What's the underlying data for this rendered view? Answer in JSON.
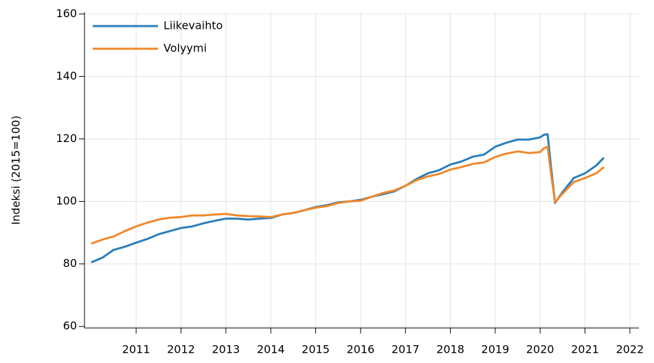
{
  "chart_data": {
    "type": "line",
    "y_label": "Indeksi (2015=100)",
    "x": [
      2010.0,
      2010.25,
      2010.5,
      2010.75,
      2011.0,
      2011.25,
      2011.5,
      2011.75,
      2012.0,
      2012.25,
      2012.5,
      2012.75,
      2013.0,
      2013.25,
      2013.5,
      2013.75,
      2014.0,
      2014.25,
      2014.5,
      2014.75,
      2015.0,
      2015.25,
      2015.5,
      2015.75,
      2016.0,
      2016.25,
      2016.5,
      2016.75,
      2017.0,
      2017.25,
      2017.5,
      2017.75,
      2018.0,
      2018.25,
      2018.5,
      2018.75,
      2019.0,
      2019.25,
      2019.5,
      2019.75,
      2020.0,
      2020.083,
      2020.167,
      2020.25,
      2020.333,
      2020.5,
      2020.75,
      2021.0,
      2021.25,
      2021.42
    ],
    "series": [
      {
        "name": "Liikevaihto",
        "color": "#2a7fba",
        "values": [
          80.5,
          82,
          84.5,
          85.5,
          86.8,
          88,
          89.5,
          90.5,
          91.5,
          92,
          93,
          93.8,
          94.5,
          94.5,
          94.2,
          94.5,
          94.7,
          95.8,
          96.3,
          97.2,
          98.2,
          98.8,
          99.7,
          100,
          100.5,
          101.5,
          102.3,
          103.2,
          105,
          107.2,
          109,
          110,
          111.8,
          112.8,
          114.3,
          115,
          117.5,
          118.8,
          119.8,
          119.8,
          120.5,
          121.3,
          121.5,
          110,
          99.5,
          103,
          107.5,
          109,
          111.5,
          114
        ]
      },
      {
        "name": "Volyymi",
        "color": "#f0882a",
        "values": [
          86.5,
          87.8,
          88.8,
          90.5,
          92,
          93.2,
          94.2,
          94.8,
          95,
          95.5,
          95.5,
          95.8,
          96,
          95.5,
          95.3,
          95.2,
          95,
          95.8,
          96.3,
          97.2,
          98,
          98.5,
          99.5,
          100,
          100.2,
          101.5,
          102.7,
          103.5,
          105,
          106.8,
          108,
          108.8,
          110.2,
          111,
          112,
          112.5,
          114.2,
          115.3,
          116,
          115.5,
          115.8,
          117,
          117.5,
          108,
          99.8,
          102.5,
          106.2,
          107.5,
          109,
          111
        ]
      }
    ],
    "xlim": [
      2009.85,
      2022.2
    ],
    "xticks": [
      2011,
      2012,
      2013,
      2014,
      2015,
      2016,
      2017,
      2018,
      2019,
      2020,
      2021,
      2022
    ],
    "ylim": [
      59.5,
      160.5
    ],
    "yticks": [
      60,
      80,
      100,
      120,
      140,
      160
    ],
    "grid": true,
    "legend": "upper-left"
  }
}
